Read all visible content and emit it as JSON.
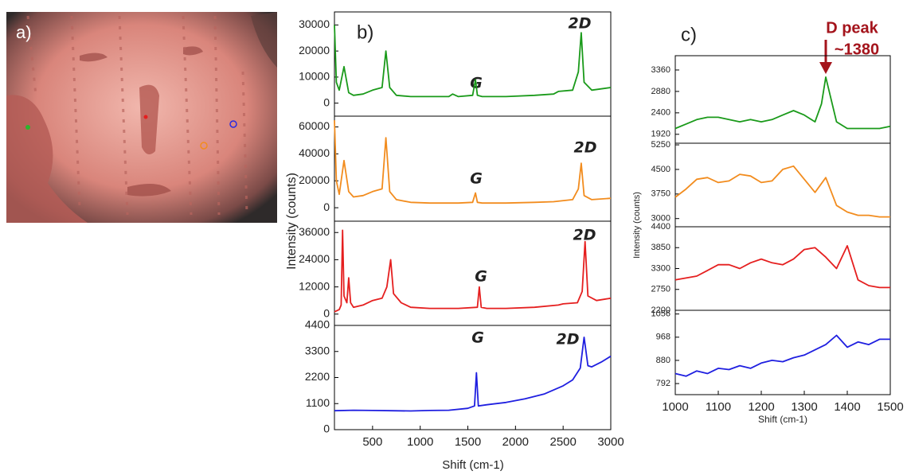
{
  "panel_a": {
    "label": "a)"
  },
  "panel_b": {
    "label": "b)",
    "ylabel": "Intensity (counts)",
    "xlabel": "Shift (cm-1)",
    "annotations": [
      "G",
      "2D",
      "G",
      "2D",
      "G",
      "2D",
      "G",
      "2D"
    ]
  },
  "panel_c": {
    "label": "c)",
    "ylabel": "Intensity (counts)",
    "xlabel": "Shift (cm-1)",
    "annotations": [
      "D peak",
      "~1380"
    ]
  },
  "chart_data": [
    {
      "type": "line",
      "xlim": [
        100,
        3000
      ],
      "ylim": [
        -5000,
        35000
      ],
      "yticks": [
        0,
        10000,
        20000,
        30000
      ],
      "x": [
        100,
        120,
        150,
        200,
        250,
        300,
        400,
        500,
        600,
        640,
        680,
        750,
        900,
        1100,
        1300,
        1340,
        1400,
        1550,
        1580,
        1600,
        1650,
        1900,
        2200,
        2400,
        2450,
        2600,
        2660,
        2690,
        2720,
        2800,
        3000
      ],
      "series": [
        {
          "color": "#1a9a1a",
          "values": [
            30000,
            8000,
            5000,
            14000,
            4000,
            3000,
            3500,
            5000,
            6000,
            20000,
            6000,
            3000,
            2500,
            2500,
            2500,
            3500,
            2500,
            3000,
            9000,
            3000,
            2500,
            2500,
            3000,
            3500,
            4500,
            5000,
            12000,
            27000,
            8000,
            5000,
            6000
          ]
        }
      ]
    },
    {
      "type": "line",
      "xlim": [
        100,
        3000
      ],
      "ylim": [
        -10000,
        68000
      ],
      "yticks": [
        0,
        20000,
        40000,
        60000
      ],
      "x": [
        100,
        120,
        150,
        200,
        250,
        300,
        400,
        500,
        600,
        640,
        680,
        750,
        900,
        1100,
        1300,
        1400,
        1550,
        1580,
        1600,
        1650,
        1900,
        2200,
        2400,
        2600,
        2660,
        2690,
        2720,
        2800,
        3000
      ],
      "series": [
        {
          "color": "#f28c1e",
          "values": [
            65000,
            20000,
            10000,
            35000,
            12000,
            8000,
            9000,
            12000,
            14000,
            52000,
            12000,
            6000,
            4000,
            3500,
            3500,
            3500,
            4000,
            11000,
            4000,
            3500,
            3500,
            4000,
            4500,
            6000,
            14000,
            33000,
            9000,
            6000,
            7000
          ]
        }
      ]
    },
    {
      "type": "line",
      "xlim": [
        100,
        3000
      ],
      "ylim": [
        -5000,
        41000
      ],
      "yticks": [
        0,
        12000,
        24000,
        36000
      ],
      "x": [
        100,
        150,
        170,
        185,
        200,
        230,
        250,
        270,
        300,
        400,
        500,
        600,
        650,
        690,
        720,
        800,
        900,
        1100,
        1300,
        1400,
        1600,
        1620,
        1640,
        1700,
        1900,
        2200,
        2450,
        2500,
        2650,
        2700,
        2730,
        2760,
        2850,
        3000
      ],
      "series": [
        {
          "color": "#e51f1f",
          "values": [
            1000,
            2000,
            4000,
            37000,
            8000,
            5000,
            16000,
            5000,
            3000,
            4000,
            6000,
            7000,
            12000,
            24000,
            9000,
            5000,
            3000,
            2500,
            2500,
            2500,
            3000,
            12000,
            3000,
            2500,
            2500,
            3000,
            4000,
            4500,
            5000,
            10000,
            32000,
            8000,
            6000,
            7000
          ]
        }
      ]
    },
    {
      "type": "line",
      "xlim": [
        100,
        3000
      ],
      "ylim": [
        0,
        4400
      ],
      "yticks": [
        0,
        1100,
        2200,
        3300,
        4400
      ],
      "xticks": [
        500,
        1000,
        1500,
        2000,
        2500,
        3000
      ],
      "x": [
        100,
        300,
        500,
        700,
        900,
        1100,
        1300,
        1500,
        1570,
        1590,
        1610,
        1700,
        1900,
        2100,
        2300,
        2500,
        2600,
        2680,
        2720,
        2760,
        2800,
        2900,
        3000
      ],
      "series": [
        {
          "color": "#1f1fe0",
          "values": [
            800,
            820,
            810,
            800,
            790,
            810,
            820,
            900,
            1000,
            2400,
            1000,
            1050,
            1150,
            1300,
            1500,
            1850,
            2100,
            2600,
            3900,
            2700,
            2650,
            2850,
            3100
          ]
        }
      ]
    },
    {
      "type": "line",
      "xlim": [
        1000,
        1500
      ],
      "ylim": [
        1720,
        3680
      ],
      "yticks": [
        1920,
        2400,
        2880,
        3360
      ],
      "x": [
        1000,
        1025,
        1050,
        1075,
        1100,
        1125,
        1150,
        1175,
        1200,
        1225,
        1250,
        1275,
        1300,
        1325,
        1340,
        1350,
        1360,
        1375,
        1400,
        1425,
        1450,
        1475,
        1500
      ],
      "series": [
        {
          "color": "#1a9a1a",
          "values": [
            2050,
            2150,
            2250,
            2300,
            2300,
            2250,
            2200,
            2250,
            2200,
            2250,
            2350,
            2450,
            2350,
            2200,
            2600,
            3200,
            2800,
            2200,
            2050,
            2050,
            2050,
            2050,
            2100
          ]
        }
      ]
    },
    {
      "type": "line",
      "xlim": [
        1000,
        1500
      ],
      "ylim": [
        2750,
        5300
      ],
      "yticks": [
        3000,
        3750,
        4500,
        5250
      ],
      "x": [
        1000,
        1025,
        1050,
        1075,
        1100,
        1125,
        1150,
        1175,
        1200,
        1225,
        1250,
        1275,
        1300,
        1325,
        1350,
        1375,
        1400,
        1425,
        1450,
        1475,
        1500
      ],
      "series": [
        {
          "color": "#f28c1e",
          "values": [
            3650,
            3900,
            4200,
            4250,
            4100,
            4150,
            4350,
            4300,
            4100,
            4150,
            4500,
            4600,
            4200,
            3800,
            4250,
            3400,
            3200,
            3100,
            3100,
            3050,
            3050
          ]
        }
      ]
    },
    {
      "type": "line",
      "xlim": [
        1000,
        1500
      ],
      "ylim": [
        2200,
        4400
      ],
      "yticks": [
        2200,
        2750,
        3300,
        3850,
        4400
      ],
      "x": [
        1000,
        1025,
        1050,
        1075,
        1100,
        1125,
        1150,
        1175,
        1200,
        1225,
        1250,
        1275,
        1300,
        1325,
        1350,
        1375,
        1400,
        1425,
        1450,
        1475,
        1500
      ],
      "series": [
        {
          "color": "#e51f1f",
          "values": [
            3000,
            3050,
            3100,
            3250,
            3400,
            3400,
            3300,
            3450,
            3550,
            3450,
            3400,
            3550,
            3800,
            3850,
            3600,
            3300,
            3900,
            3000,
            2850,
            2800,
            2800
          ]
        }
      ]
    },
    {
      "type": "line",
      "xlim": [
        1000,
        1500
      ],
      "ylim": [
        750,
        1070
      ],
      "yticks": [
        792,
        880,
        968,
        1056
      ],
      "xticks": [
        1000,
        1100,
        1200,
        1300,
        1400,
        1500
      ],
      "x": [
        1000,
        1025,
        1050,
        1075,
        1100,
        1125,
        1150,
        1175,
        1200,
        1225,
        1250,
        1275,
        1300,
        1325,
        1350,
        1375,
        1400,
        1425,
        1450,
        1475,
        1500
      ],
      "series": [
        {
          "color": "#1f1fe0",
          "values": [
            830,
            820,
            840,
            830,
            850,
            845,
            860,
            850,
            870,
            880,
            875,
            890,
            900,
            920,
            940,
            975,
            930,
            950,
            940,
            960,
            960
          ]
        }
      ]
    }
  ]
}
